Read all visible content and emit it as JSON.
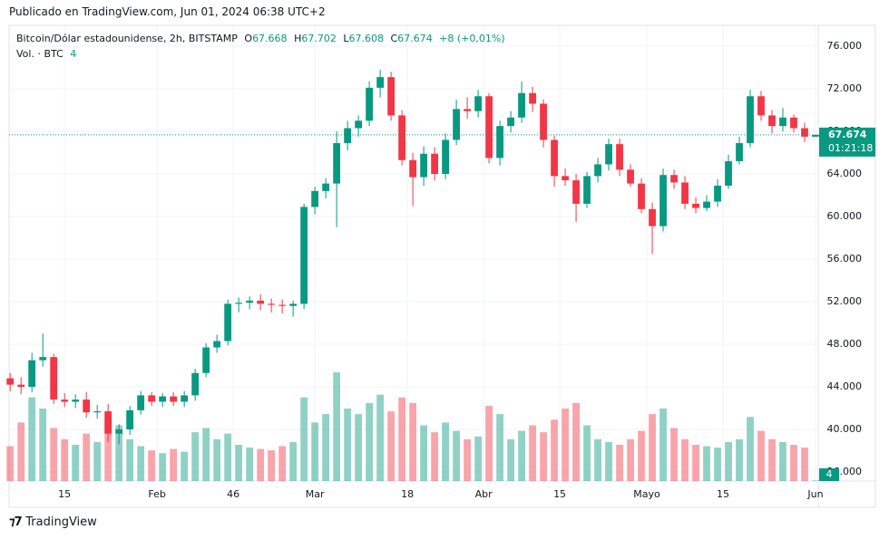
{
  "header": {
    "published": "Publicado en TradingView.com, Jun 01, 2024 06:38 UTC+2"
  },
  "legend": {
    "symbol": "Bitcoin/Dólar estadounidense, 2h, BITSTAMP",
    "o_label": "O",
    "o_value": "67.668",
    "h_label": "H",
    "h_value": "67.702",
    "l_label": "L",
    "l_value": "67.608",
    "c_label": "C",
    "c_value": "67.674",
    "change": "+8 (+0,01%)",
    "vol_label": "Vol. · BTC",
    "vol_value": "4"
  },
  "price_tag": {
    "price": "67.674",
    "countdown": "01:21:18",
    "volume": "4"
  },
  "footer": {
    "brand": "TradingView"
  },
  "chart_data": {
    "type": "candlestick",
    "up_color": "#089981",
    "down_color": "#f23645",
    "grid": true,
    "x": [
      5,
      7,
      9,
      11,
      13,
      15,
      17,
      19,
      21,
      23,
      25,
      27,
      29,
      31,
      33,
      35,
      37,
      39,
      41,
      43,
      45,
      47,
      49,
      51,
      53,
      55,
      57,
      59,
      61,
      63,
      65,
      67,
      69,
      71,
      73,
      75,
      77,
      79,
      81,
      83,
      85,
      87,
      89,
      91,
      93,
      95,
      97,
      99,
      101,
      103,
      105,
      107,
      109,
      111,
      113,
      115,
      117,
      119,
      121,
      123,
      125,
      127,
      129,
      131,
      133,
      135,
      137,
      139,
      141,
      143,
      145,
      147,
      149,
      151,
      153
    ],
    "open": [
      44800,
      44200,
      44000,
      46500,
      46800,
      42800,
      42600,
      42800,
      41600,
      41700,
      39600,
      40000,
      41800,
      43200,
      42600,
      43100,
      42600,
      43200,
      45300,
      47700,
      48300,
      51800,
      51900,
      52100,
      51800,
      51700,
      51600,
      51800,
      60900,
      62400,
      63100,
      66900,
      68300,
      69000,
      72100,
      73100,
      69500,
      65300,
      63700,
      65900,
      64000,
      67200,
      70100,
      69900,
      71300,
      65500,
      68500,
      69300,
      71600,
      70600,
      67200,
      63800,
      63400,
      61200,
      63800,
      64900,
      66800,
      64400,
      63100,
      60700,
      59100,
      63900,
      63200,
      61200,
      60800,
      61400,
      62900,
      65200,
      66900,
      71300,
      69500,
      68500,
      69300,
      68300,
      67500
    ],
    "high": [
      45300,
      44900,
      47200,
      49000,
      47100,
      43400,
      43300,
      43500,
      42300,
      42400,
      40500,
      42200,
      43600,
      43500,
      43400,
      43500,
      43600,
      45700,
      48100,
      48900,
      52200,
      52400,
      52500,
      52700,
      52300,
      52200,
      52100,
      61200,
      62800,
      63600,
      68000,
      69000,
      69500,
      72700,
      73800,
      73600,
      70000,
      66000,
      66600,
      66500,
      67800,
      71000,
      71200,
      71900,
      71600,
      69000,
      69900,
      72700,
      72200,
      71000,
      67600,
      64500,
      64000,
      64200,
      65500,
      67300,
      67300,
      64900,
      63600,
      61300,
      64500,
      64400,
      63800,
      61800,
      62000,
      63500,
      65800,
      67500,
      71900,
      71800,
      70000,
      70200,
      69600,
      68800,
      67702
    ],
    "low": [
      43600,
      43300,
      43500,
      45900,
      42400,
      42100,
      42000,
      41100,
      41000,
      38800,
      38600,
      39500,
      41400,
      42200,
      42100,
      42200,
      42100,
      42700,
      44900,
      47200,
      47900,
      51000,
      51300,
      51200,
      51000,
      50900,
      50600,
      51300,
      60200,
      61700,
      59000,
      66200,
      67500,
      68500,
      71200,
      69000,
      64800,
      61000,
      62900,
      63400,
      63500,
      66700,
      69200,
      69300,
      65000,
      64800,
      67900,
      68800,
      69800,
      66500,
      62800,
      62900,
      59500,
      60800,
      63200,
      64300,
      63800,
      62800,
      60300,
      56500,
      58600,
      62600,
      60700,
      60300,
      60500,
      60900,
      62600,
      64900,
      66500,
      69000,
      67800,
      68000,
      67900,
      67000,
      67608
    ],
    "close": [
      44200,
      44000,
      46500,
      46800,
      42800,
      42600,
      42800,
      41600,
      41700,
      39600,
      40000,
      41800,
      43200,
      42600,
      43100,
      42600,
      43200,
      45300,
      47700,
      48300,
      51800,
      51900,
      52100,
      51800,
      51700,
      51600,
      51800,
      60900,
      62400,
      63100,
      66900,
      68300,
      69000,
      72100,
      73100,
      69500,
      65300,
      63700,
      65900,
      64000,
      67200,
      70100,
      69900,
      71300,
      65500,
      68500,
      69300,
      71600,
      70600,
      67200,
      63800,
      63400,
      61200,
      63800,
      64900,
      66800,
      64400,
      63100,
      60700,
      59100,
      63900,
      63200,
      61200,
      60800,
      61400,
      62900,
      65200,
      66900,
      71300,
      69500,
      68500,
      69300,
      68300,
      67500,
      67674
    ],
    "volume": [
      250,
      420,
      600,
      520,
      380,
      300,
      260,
      340,
      280,
      450,
      400,
      300,
      250,
      220,
      200,
      230,
      210,
      350,
      380,
      300,
      340,
      260,
      240,
      230,
      220,
      250,
      280,
      600,
      420,
      480,
      780,
      520,
      480,
      560,
      620,
      500,
      600,
      560,
      400,
      350,
      420,
      360,
      300,
      320,
      540,
      480,
      300,
      360,
      400,
      350,
      440,
      520,
      560,
      400,
      300,
      280,
      260,
      300,
      360,
      480,
      520,
      380,
      300,
      260,
      250,
      240,
      280,
      300,
      460,
      360,
      300,
      280,
      260,
      240,
      4
    ],
    "xlim": [
      4.8,
      153.5
    ],
    "xticks": [
      15,
      {
        "value": 32,
        "label": "Feb"
      },
      46,
      {
        "value": 61,
        "label": "Mar"
      },
      {
        "value": 78,
        "label": "18"
      },
      {
        "value": 92,
        "label": "Abr"
      },
      {
        "value": 106,
        "label": "15"
      },
      {
        "value": 122,
        "label": "Mayo"
      },
      {
        "value": 136,
        "label": "15"
      },
      {
        "value": 153,
        "label": "Jun"
      }
    ],
    "ylim": [
      35150,
      77960
    ],
    "yticks": [
      {
        "value": 36000,
        "label": "36.000"
      },
      {
        "value": 40000,
        "label": "40.000"
      },
      {
        "value": 44000,
        "label": "44.000"
      },
      {
        "value": 48000,
        "label": "48.000"
      },
      {
        "value": 52000,
        "label": "52.000"
      },
      {
        "value": 56000,
        "label": "56.000"
      },
      {
        "value": 60000,
        "label": "60.000"
      },
      {
        "value": 64000,
        "label": "64.000"
      },
      {
        "value": 68000,
        "label": "68.000"
      },
      {
        "value": 72000,
        "label": "72.000"
      },
      {
        "value": 76000,
        "label": "76.000"
      }
    ]
  }
}
